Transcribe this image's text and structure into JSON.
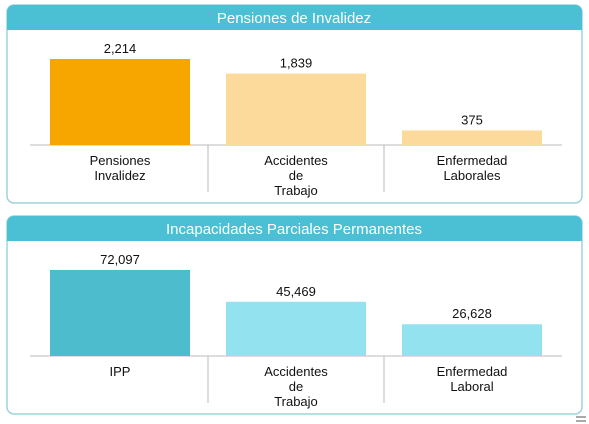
{
  "chart_data": [
    {
      "type": "bar",
      "title": "Pensiones de Invalidez",
      "categories": [
        "Pensiones Invalidez",
        "Accidentes de Trabajo",
        "Enfermedad Laborales"
      ],
      "values": [
        2214,
        1839,
        375
      ],
      "value_labels": [
        "2,214",
        "1,839",
        "375"
      ],
      "colors": [
        "#f7a600",
        "#fcda9c",
        "#fcda9c"
      ]
    },
    {
      "type": "bar",
      "title": "Incapacidades Parciales Permanentes",
      "categories": [
        "IPP",
        "Accidentes de Trabajo",
        "Enfermedad Laboral"
      ],
      "values": [
        72097,
        45469,
        26628
      ],
      "value_labels": [
        "72,097",
        "45,469",
        "26,628"
      ],
      "colors": [
        "#4dbccd",
        "#92e2ef",
        "#92e2ef"
      ]
    }
  ]
}
